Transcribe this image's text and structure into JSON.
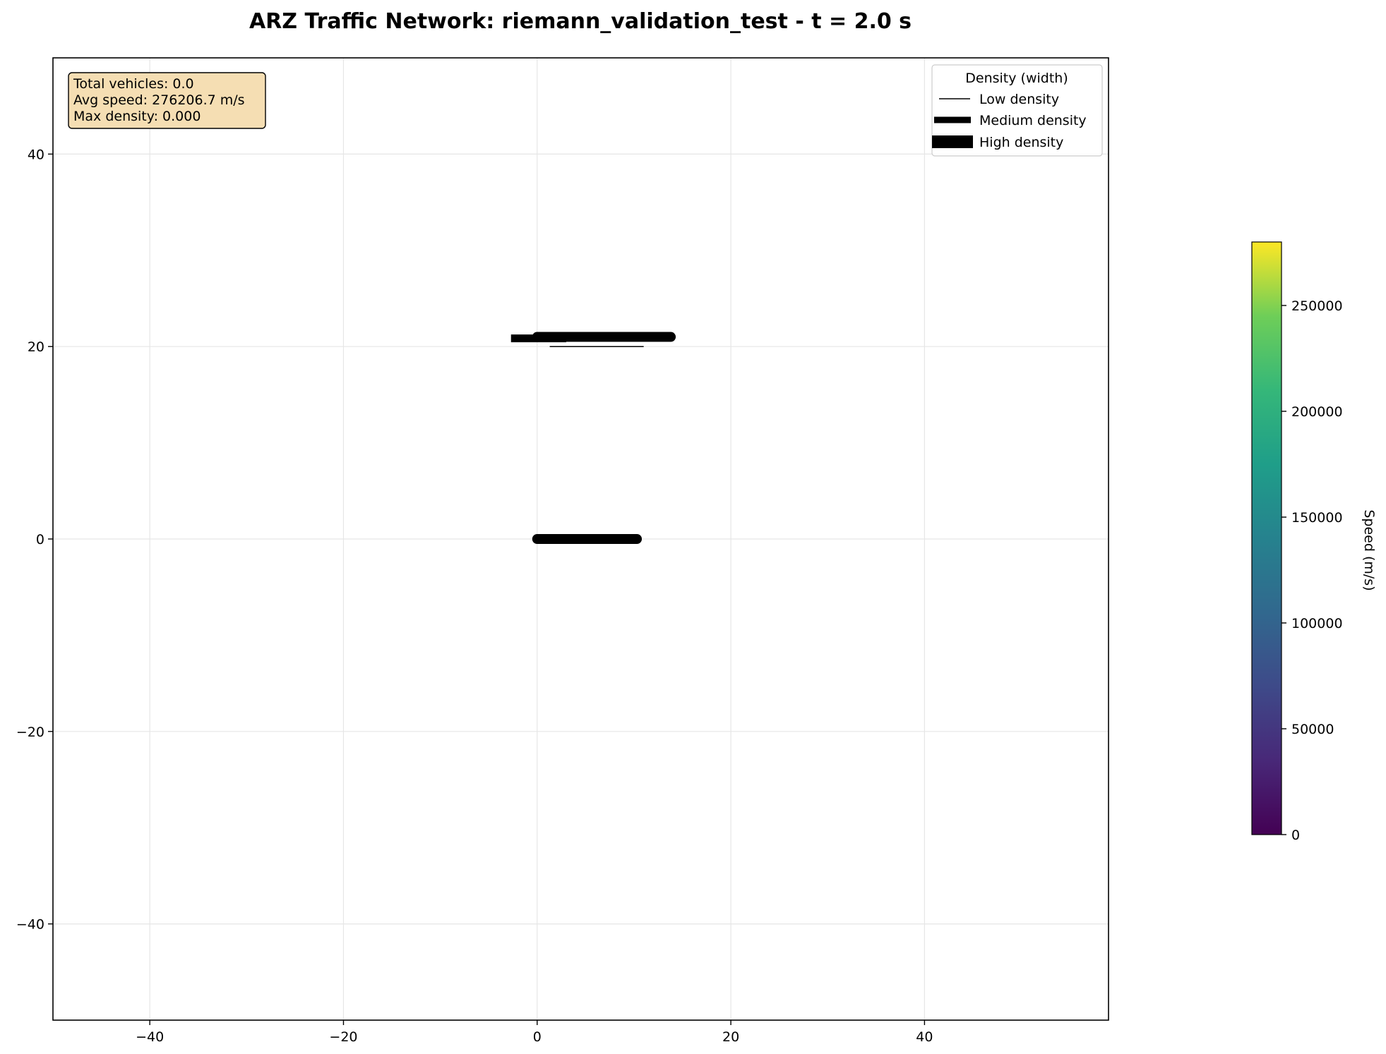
{
  "chart_data": {
    "type": "line",
    "title": "ARZ Traffic Network: riemann_validation_test - t = 2.0 s",
    "xlim": [
      -50,
      59
    ],
    "ylim": [
      -50,
      50
    ],
    "x_ticks": [
      -40,
      -20,
      0,
      20,
      40
    ],
    "y_ticks": [
      40,
      20,
      0,
      -20,
      -40
    ],
    "x_tick_labels": [
      "−40",
      "−20",
      "0",
      "20",
      "40"
    ],
    "y_tick_labels": [
      "40",
      "20",
      "0",
      "−20",
      "−40"
    ],
    "grid": true,
    "segments": [
      {
        "x": [
          -2.7,
          3.0
        ],
        "y": [
          20.85,
          20.85
        ],
        "density_level": "medium",
        "color": "#000000"
      },
      {
        "x": [
          0.0,
          13.8
        ],
        "y": [
          21.0,
          21.0
        ],
        "density_level": "high",
        "color": "#000000"
      },
      {
        "x": [
          1.3,
          11.0
        ],
        "y": [
          20.0,
          20.0
        ],
        "density_level": "low",
        "color": "#000000"
      },
      {
        "x": [
          0.0,
          10.3
        ],
        "y": [
          0.0,
          0.0
        ],
        "density_level": "high",
        "color": "#000000"
      }
    ],
    "stats": {
      "lines": [
        "Total vehicles: 0.0",
        "Avg speed: 276206.7 m/s",
        "Max density: 0.000"
      ],
      "background": "#f5deb3",
      "placement": "top-left"
    },
    "legend": {
      "title": "Density (width)",
      "placement": "top-right",
      "entries": [
        {
          "label": "Low density",
          "level": "low"
        },
        {
          "label": "Medium density",
          "level": "medium"
        },
        {
          "label": "High density",
          "level": "high"
        }
      ]
    },
    "colorbar": {
      "label": "Speed (m/s)",
      "colormap": "viridis",
      "range": [
        0,
        280000
      ],
      "ticks": [
        0,
        50000,
        100000,
        150000,
        200000,
        250000
      ],
      "tick_labels": [
        "0",
        "50000",
        "100000",
        "150000",
        "200000",
        "250000"
      ]
    }
  }
}
